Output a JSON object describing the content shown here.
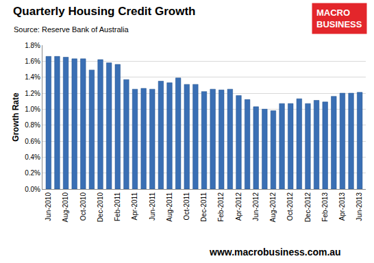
{
  "chart_data": {
    "type": "bar",
    "title": "Quarterly Housing Credit Growth",
    "subtitle": "Source: Reserve Bank of Australia",
    "y_label": "Growth Rate",
    "logo_lines": [
      "MACRO",
      "BUSINESS"
    ],
    "footer": "www.macrobusiness.com.au",
    "categories": [
      "Jun-2010",
      null,
      "Aug-2010",
      null,
      "Oct-2010",
      null,
      "Dec-2010",
      null,
      "Feb-2011",
      null,
      "Apr-2011",
      null,
      "Jun-2011",
      null,
      "Aug-2011",
      null,
      "Oct-2011",
      null,
      "Dec-2011",
      null,
      "Feb-2012",
      null,
      "Apr-2012",
      null,
      "Jun-2012",
      null,
      "Aug-2012",
      null,
      "Oct-2012",
      null,
      "Dec-2012",
      null,
      "Feb-2013",
      null,
      "Apr-2013",
      null,
      "Jun-2013"
    ],
    "values": [
      1.66,
      1.66,
      1.65,
      1.63,
      1.63,
      1.49,
      1.62,
      1.58,
      1.56,
      1.37,
      1.25,
      1.26,
      1.25,
      1.35,
      1.33,
      1.39,
      1.31,
      1.31,
      1.22,
      1.25,
      1.24,
      1.25,
      1.17,
      1.12,
      1.03,
      1.0,
      0.98,
      1.07,
      1.07,
      1.13,
      1.07,
      1.11,
      1.09,
      1.16,
      1.2,
      1.2,
      1.21
    ],
    "color": "#3a6fb4",
    "ylim": [
      0,
      1.8
    ],
    "yticks": [
      {
        "value": 0,
        "label": "0.0%"
      },
      {
        "value": 0.2,
        "label": "0.2%"
      },
      {
        "value": 0.4,
        "label": "0.4%"
      },
      {
        "value": 0.6,
        "label": "0.6%"
      },
      {
        "value": 0.8,
        "label": "0.8%"
      },
      {
        "value": 1.0,
        "label": "1.0%"
      },
      {
        "value": 1.2,
        "label": "1.2%"
      },
      {
        "value": 1.4,
        "label": "1.4%"
      },
      {
        "value": 1.6,
        "label": "1.6%"
      },
      {
        "value": 1.8,
        "label": "1.8%"
      }
    ],
    "grid": true
  }
}
